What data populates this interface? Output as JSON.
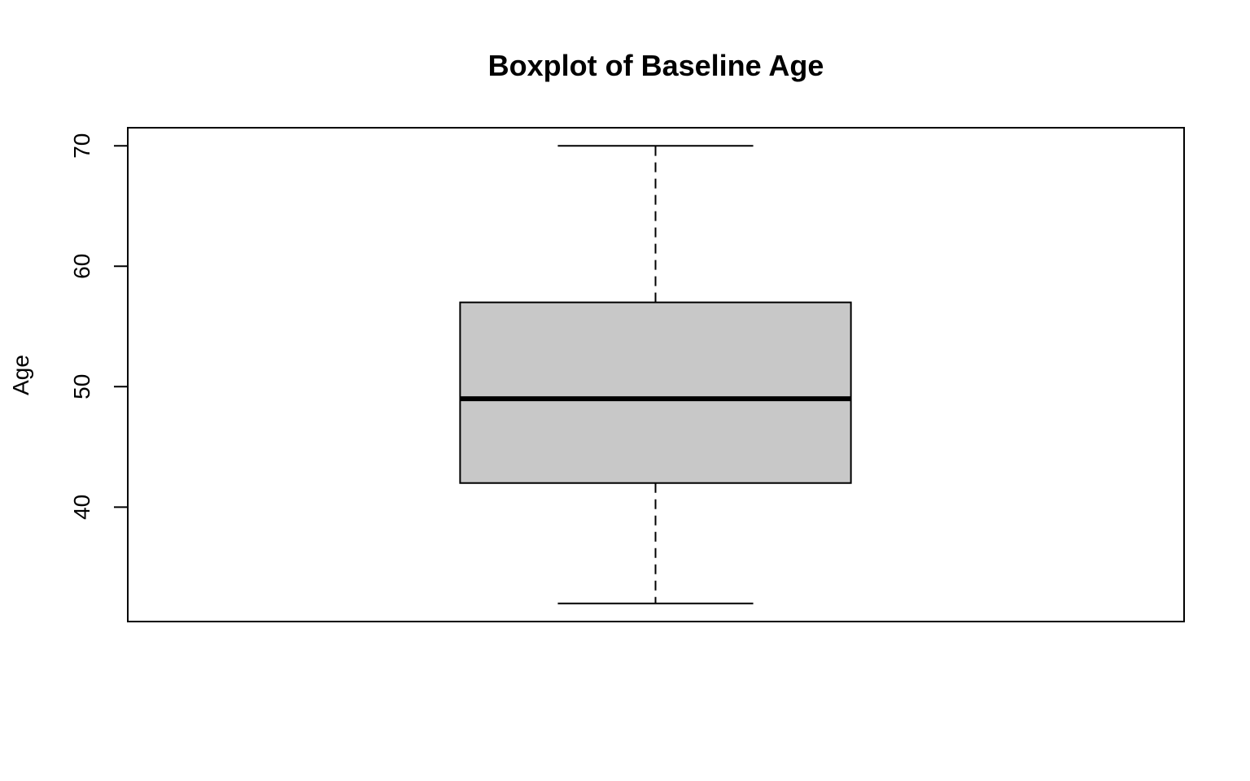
{
  "chart_data": {
    "type": "boxplot",
    "title": "Boxplot of Baseline Age",
    "xlabel": "",
    "ylabel": "Age",
    "ylim": [
      30.5,
      71.5
    ],
    "yticks": [
      40,
      50,
      60,
      70
    ],
    "ytick_labels": [
      "40",
      "50",
      "60",
      "70"
    ],
    "grid": false,
    "legend": "none",
    "boxes": [
      {
        "whisker_low": 32,
        "q1": 42,
        "median": 49,
        "q3": 57,
        "whisker_high": 70
      }
    ],
    "colors": {
      "box_fill": "#c8c8c8",
      "line": "#000000",
      "background": "#ffffff"
    }
  }
}
